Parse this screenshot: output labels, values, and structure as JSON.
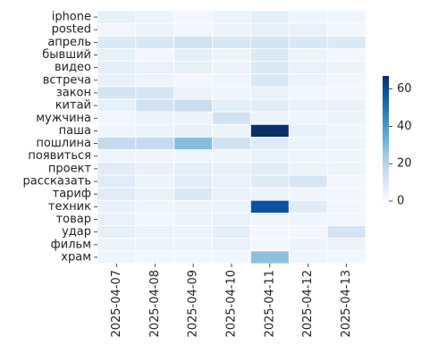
{
  "chart_data": {
    "type": "heatmap",
    "title": "",
    "xlabel": "",
    "ylabel": "",
    "x": [
      "2025-04-07",
      "2025-04-08",
      "2025-04-09",
      "2025-04-10",
      "2025-04-11",
      "2025-04-12",
      "2025-04-13"
    ],
    "y": [
      "iphone",
      "posted",
      "апрель",
      "бывший",
      "видео",
      "встреча",
      "закон",
      "китай",
      "мужчина",
      "паша",
      "пошлина",
      "появиться",
      "проект",
      "рассказать",
      "тариф",
      "техник",
      "товар",
      "удар",
      "фильм",
      "храм"
    ],
    "values": [
      [
        6,
        4,
        2,
        4,
        7,
        3,
        3
      ],
      [
        2,
        4,
        2,
        4,
        6,
        5,
        2
      ],
      [
        9,
        10,
        13,
        10,
        12,
        10,
        9
      ],
      [
        6,
        2,
        7,
        4,
        10,
        4,
        2
      ],
      [
        7,
        5,
        6,
        4,
        10,
        5,
        4
      ],
      [
        5,
        4,
        2,
        3,
        10,
        4,
        2
      ],
      [
        12,
        11,
        4,
        3,
        5,
        2,
        2
      ],
      [
        6,
        13,
        15,
        7,
        8,
        5,
        5
      ],
      [
        2,
        4,
        4,
        13,
        4,
        3,
        4
      ],
      [
        3,
        4,
        6,
        4,
        67,
        6,
        3
      ],
      [
        17,
        17,
        29,
        13,
        8,
        4,
        4
      ],
      [
        3,
        3,
        3,
        3,
        5,
        3,
        3
      ],
      [
        8,
        5,
        7,
        5,
        8,
        4,
        4
      ],
      [
        8,
        4,
        8,
        5,
        9,
        11,
        2
      ],
      [
        8,
        5,
        10,
        5,
        4,
        3,
        2
      ],
      [
        5,
        3,
        4,
        4,
        58,
        8,
        2
      ],
      [
        5,
        2,
        4,
        5,
        3,
        3,
        2
      ],
      [
        6,
        4,
        4,
        7,
        2,
        2,
        12
      ],
      [
        4,
        4,
        4,
        5,
        2,
        4,
        4
      ],
      [
        3,
        2,
        2,
        2,
        28,
        3,
        2
      ]
    ],
    "vmin": 0,
    "vmax": 67,
    "colorbar_ticks": [
      0,
      20,
      40,
      60
    ],
    "colormap": "Blues",
    "grid": true
  }
}
